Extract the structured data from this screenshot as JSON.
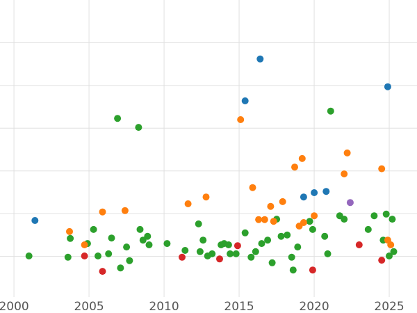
{
  "chart_data": {
    "type": "scatter",
    "title": "",
    "xlabel": "",
    "ylabel": "",
    "xlim": [
      1999.07,
      2026.85
    ],
    "ylim": [
      0,
      7
    ],
    "x_ticks": [
      2000,
      2005,
      2010,
      2015,
      2020,
      2025
    ],
    "y_gridlines": [
      1,
      2,
      3,
      4,
      5,
      6
    ],
    "grid": true,
    "legend_position": "none",
    "background_color": "#ffffff",
    "grid_color": "#e0e0e0",
    "tick_label_color": "#555555",
    "point_radius": 5,
    "series": [
      {
        "name": "green-series",
        "color": "#2ca02c",
        "points": [
          [
            2001.0,
            1.01
          ],
          [
            2003.6,
            0.98
          ],
          [
            2003.75,
            1.42
          ],
          [
            2004.9,
            1.3
          ],
          [
            2005.3,
            1.63
          ],
          [
            2005.6,
            1.01
          ],
          [
            2006.3,
            1.06
          ],
          [
            2006.5,
            1.43
          ],
          [
            2006.9,
            4.23
          ],
          [
            2007.1,
            0.73
          ],
          [
            2007.5,
            1.22
          ],
          [
            2007.7,
            0.9
          ],
          [
            2008.3,
            4.02
          ],
          [
            2008.4,
            1.63
          ],
          [
            2008.6,
            1.38
          ],
          [
            2008.9,
            1.47
          ],
          [
            2009.0,
            1.27
          ],
          [
            2010.2,
            1.3
          ],
          [
            2011.4,
            1.14
          ],
          [
            2012.3,
            1.76
          ],
          [
            2012.4,
            1.11
          ],
          [
            2012.6,
            1.38
          ],
          [
            2012.9,
            1.01
          ],
          [
            2013.2,
            1.06
          ],
          [
            2013.8,
            1.27
          ],
          [
            2014.0,
            1.3
          ],
          [
            2014.3,
            1.27
          ],
          [
            2014.4,
            1.06
          ],
          [
            2014.8,
            1.06
          ],
          [
            2015.4,
            1.55
          ],
          [
            2015.8,
            0.98
          ],
          [
            2016.1,
            1.11
          ],
          [
            2016.5,
            1.3
          ],
          [
            2016.9,
            1.38
          ],
          [
            2017.2,
            0.85
          ],
          [
            2017.5,
            1.87
          ],
          [
            2017.8,
            1.47
          ],
          [
            2018.2,
            1.5
          ],
          [
            2018.5,
            0.98
          ],
          [
            2018.6,
            0.68
          ],
          [
            2018.9,
            1.22
          ],
          [
            2019.7,
            1.82
          ],
          [
            2019.9,
            1.63
          ],
          [
            2020.7,
            1.47
          ],
          [
            2020.9,
            1.06
          ],
          [
            2021.1,
            4.4
          ],
          [
            2021.7,
            1.95
          ],
          [
            2022.0,
            1.87
          ],
          [
            2023.6,
            1.63
          ],
          [
            2024.0,
            1.95
          ],
          [
            2024.6,
            1.38
          ],
          [
            2024.8,
            1.99
          ],
          [
            2025.0,
            1.01
          ],
          [
            2025.2,
            1.87
          ],
          [
            2025.3,
            1.11
          ]
        ]
      },
      {
        "name": "orange-series",
        "color": "#ff7f0e",
        "points": [
          [
            2003.7,
            1.58
          ],
          [
            2004.7,
            1.27
          ],
          [
            2005.9,
            2.04
          ],
          [
            2007.4,
            2.07
          ],
          [
            2011.6,
            2.23
          ],
          [
            2012.8,
            2.39
          ],
          [
            2015.1,
            4.2
          ],
          [
            2015.9,
            2.61
          ],
          [
            2016.3,
            1.86
          ],
          [
            2016.7,
            1.86
          ],
          [
            2017.1,
            2.17
          ],
          [
            2017.3,
            1.82
          ],
          [
            2017.9,
            2.28
          ],
          [
            2018.7,
            3.09
          ],
          [
            2019.0,
            1.71
          ],
          [
            2019.2,
            3.29
          ],
          [
            2019.3,
            1.79
          ],
          [
            2020.0,
            1.95
          ],
          [
            2022.0,
            2.93
          ],
          [
            2022.2,
            3.42
          ],
          [
            2024.5,
            3.05
          ],
          [
            2024.9,
            1.38
          ],
          [
            2025.1,
            1.27
          ]
        ]
      },
      {
        "name": "blue-series",
        "color": "#1f77b4",
        "points": [
          [
            2001.4,
            1.84
          ],
          [
            2015.4,
            4.64
          ],
          [
            2016.4,
            5.62
          ],
          [
            2019.3,
            2.39
          ],
          [
            2020.0,
            2.49
          ],
          [
            2020.8,
            2.52
          ],
          [
            2024.9,
            4.97
          ]
        ]
      },
      {
        "name": "red-series",
        "color": "#d62728",
        "points": [
          [
            2004.7,
            1.01
          ],
          [
            2005.9,
            0.65
          ],
          [
            2011.2,
            0.98
          ],
          [
            2013.7,
            0.94
          ],
          [
            2014.9,
            1.25
          ],
          [
            2019.9,
            0.68
          ],
          [
            2023.0,
            1.27
          ],
          [
            2024.5,
            0.91
          ]
        ]
      },
      {
        "name": "purple-series",
        "color": "#9467bd",
        "points": [
          [
            2022.4,
            2.26
          ]
        ]
      }
    ]
  }
}
